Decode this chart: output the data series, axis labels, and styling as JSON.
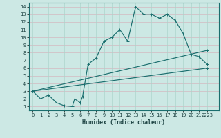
{
  "xlabel": "Humidex (Indice chaleur)",
  "bg_color": "#cce8e4",
  "grid_color": "#add4cc",
  "line_color": "#1a6e6e",
  "ylim": [
    0.5,
    14.5
  ],
  "xlim": [
    -0.5,
    23.5
  ],
  "yticks": [
    1,
    2,
    3,
    4,
    5,
    6,
    7,
    8,
    9,
    10,
    11,
    12,
    13,
    14
  ],
  "xticks": [
    0,
    1,
    2,
    3,
    4,
    5,
    6,
    7,
    8,
    9,
    10,
    11,
    12,
    13,
    14,
    15,
    16,
    17,
    18,
    19,
    20,
    21,
    22
  ],
  "xtick_labels": [
    "0",
    "1",
    "2",
    "3",
    "4",
    "5",
    "6",
    "7",
    "8",
    "9",
    "10",
    "11",
    "12",
    "13",
    "14",
    "15",
    "16",
    "17",
    "18",
    "19",
    "20",
    "21",
    "2223"
  ],
  "line1_x": [
    0,
    1,
    2,
    3,
    4,
    5,
    5.3,
    6,
    6.3,
    7,
    8,
    9,
    10,
    11,
    12,
    13,
    14,
    15,
    16,
    17,
    18,
    19,
    20,
    21,
    22
  ],
  "line1_y": [
    3,
    2,
    2.5,
    1.5,
    1.1,
    1.0,
    2.0,
    1.5,
    2.3,
    6.5,
    7.3,
    9.5,
    10.0,
    11.0,
    9.5,
    14.0,
    13.0,
    13.0,
    12.5,
    13.0,
    12.2,
    10.5,
    7.8,
    7.5,
    6.5
  ],
  "line2_x": [
    0,
    22
  ],
  "line2_y": [
    3.0,
    8.3
  ],
  "line3_x": [
    0,
    22
  ],
  "line3_y": [
    3.0,
    6.0
  ],
  "marker": "+"
}
